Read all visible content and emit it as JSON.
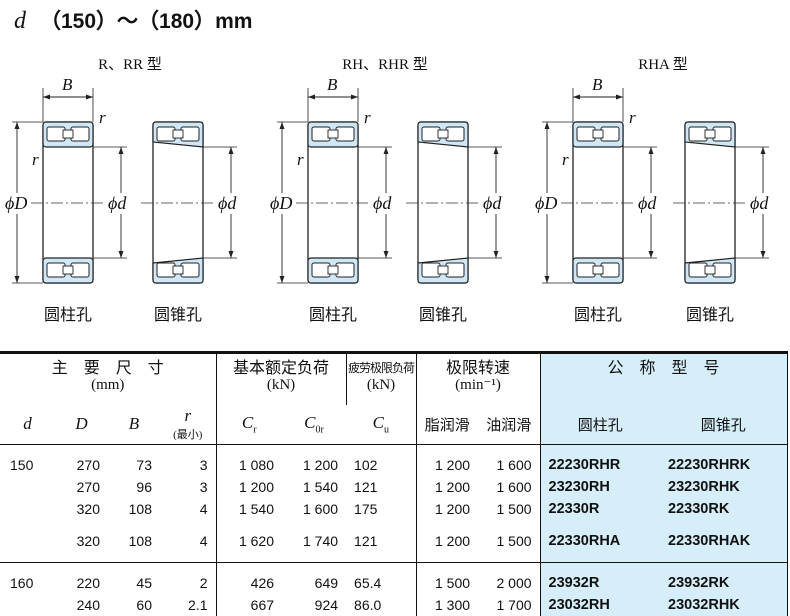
{
  "title": {
    "symbol": "d",
    "range": "（150）～（180）mm"
  },
  "figure_groups": [
    {
      "label": "R、RR 型",
      "captions": [
        "圆柱孔",
        "圆锥孔"
      ]
    },
    {
      "label": "RH、RHR 型",
      "captions": [
        "圆柱孔",
        "圆锥孔"
      ]
    },
    {
      "label": "RHA 型",
      "captions": [
        "圆柱孔",
        "圆锥孔"
      ]
    }
  ],
  "dim_labels": {
    "B": "B",
    "r": "r",
    "D": "ϕD",
    "d": "ϕd"
  },
  "colors": {
    "bearing_fill": "#cfe7f6",
    "model_column_bg": "#d6eef9"
  },
  "table": {
    "groups": {
      "dimensions": "主　要　尺　寸",
      "dimensions_unit": "(mm)",
      "load": "基本额定负荷",
      "load_unit": "(kN)",
      "fatigue": "疲劳极限负荷",
      "fatigue_unit": "(kN)",
      "speed": "极限转速",
      "speed_unit": "(min⁻¹)",
      "model": "公　称　型　号"
    },
    "columns": {
      "d": "d",
      "D": "D",
      "B": "B",
      "r": "r",
      "r_note": "(最小)",
      "Cr": "Cr",
      "C0r": "C0r",
      "Cu": "Cu",
      "grease": "脂润滑",
      "oil": "油润滑",
      "cyl": "圆柱孔",
      "taper": "圆锥孔"
    },
    "rows": [
      {
        "d": "150",
        "D": "270",
        "B": "73",
        "r": "3",
        "Cr": "1 080",
        "C0r": "1 200",
        "Cu": "102",
        "grease": "1 200",
        "oil": "1 600",
        "cyl": "22230RHR",
        "taper": "22230RHRK"
      },
      {
        "d": "",
        "D": "270",
        "B": "96",
        "r": "3",
        "Cr": "1 200",
        "C0r": "1 540",
        "Cu": "121",
        "grease": "1 200",
        "oil": "1 600",
        "cyl": "23230RH",
        "taper": "23230RHK"
      },
      {
        "d": "",
        "D": "320",
        "B": "108",
        "r": "4",
        "Cr": "1 540",
        "C0r": "1 600",
        "Cu": "175",
        "grease": "1 200",
        "oil": "1 500",
        "cyl": "22330R",
        "taper": "22330RK"
      },
      {
        "d": "",
        "D": "320",
        "B": "108",
        "r": "4",
        "Cr": "1 620",
        "C0r": "1 740",
        "Cu": "121",
        "grease": "1 200",
        "oil": "1 500",
        "cyl": "22330RHA",
        "taper": "22330RHAK"
      },
      {
        "d": "160",
        "D": "220",
        "B": "45",
        "r": "2",
        "Cr": "426",
        "C0r": "649",
        "Cu": "65.4",
        "grease": "1 500",
        "oil": "2 000",
        "cyl": "23932R",
        "taper": "23932RK"
      },
      {
        "d": "",
        "D": "240",
        "B": "60",
        "r": "2.1",
        "Cr": "667",
        "C0r": "924",
        "Cu": "86.0",
        "grease": "1 300",
        "oil": "1 700",
        "cyl": "23032RH",
        "taper": "23032RHK"
      }
    ]
  }
}
